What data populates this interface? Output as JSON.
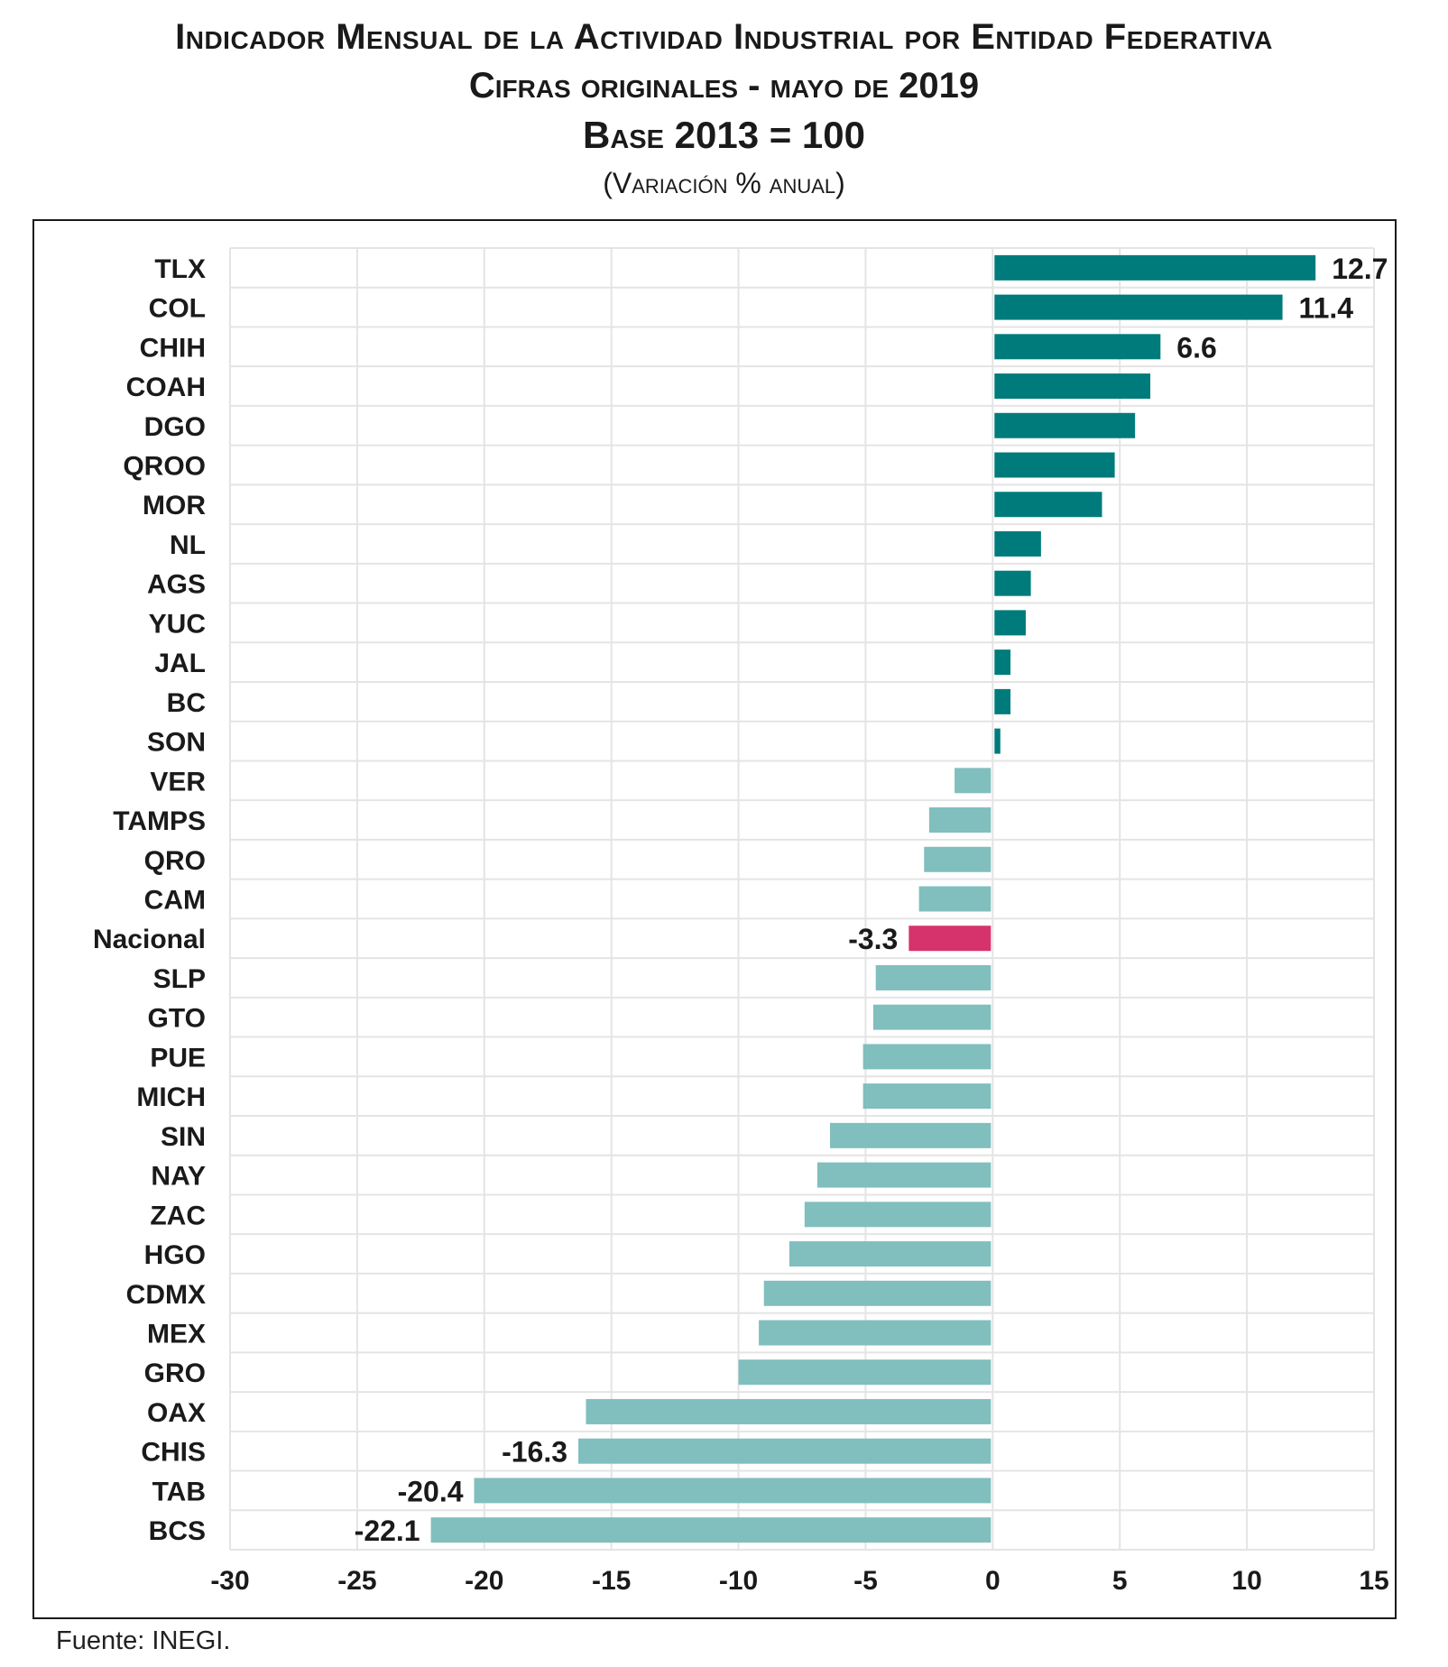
{
  "header": {
    "title": "Indicador Mensual de la Actividad Industrial por Entidad Federativa",
    "subtitle": "Cifras originales - mayo de 2019",
    "base": "Base 2013 = 100",
    "unit": "(Variación % anual)"
  },
  "source": "Fuente: INEGI.",
  "colors": {
    "positive": "#007b7c",
    "negative": "#80bfbe",
    "nacional": "#d6336c",
    "grid": "#e4e4e4"
  },
  "chart_data": {
    "type": "bar",
    "orientation": "horizontal",
    "title": "Indicador Mensual de la Actividad Industrial por Entidad Federativa",
    "xlabel": "",
    "ylabel": "",
    "xlim": [
      -30,
      15
    ],
    "xticks": [
      -30,
      -25,
      -20,
      -15,
      -10,
      -5,
      0,
      5,
      10,
      15
    ],
    "grid": true,
    "categories": [
      "TLX",
      "COL",
      "CHIH",
      "COAH",
      "DGO",
      "QROO",
      "MOR",
      "NL",
      "AGS",
      "YUC",
      "JAL",
      "BC",
      "SON",
      "VER",
      "TAMPS",
      "QRO",
      "CAM",
      "Nacional",
      "SLP",
      "GTO",
      "PUE",
      "MICH",
      "SIN",
      "NAY",
      "ZAC",
      "HGO",
      "CDMX",
      "MEX",
      "GRO",
      "OAX",
      "CHIS",
      "TAB",
      "BCS"
    ],
    "values": [
      12.7,
      11.4,
      6.6,
      6.2,
      5.6,
      4.8,
      4.3,
      1.9,
      1.5,
      1.3,
      0.7,
      0.7,
      0.3,
      -1.5,
      -2.5,
      -2.7,
      -2.9,
      -3.3,
      -4.6,
      -4.7,
      -5.1,
      -5.1,
      -6.4,
      -6.9,
      -7.4,
      -8.0,
      -9.0,
      -9.2,
      -10.0,
      -16.0,
      -16.3,
      -20.4,
      -22.1
    ],
    "data_labels": {
      "TLX": "12.7",
      "COL": "11.4",
      "CHIH": "6.6",
      "Nacional": "-3.3",
      "CHIS": "-16.3",
      "TAB": "-20.4",
      "BCS": "-22.1"
    }
  }
}
